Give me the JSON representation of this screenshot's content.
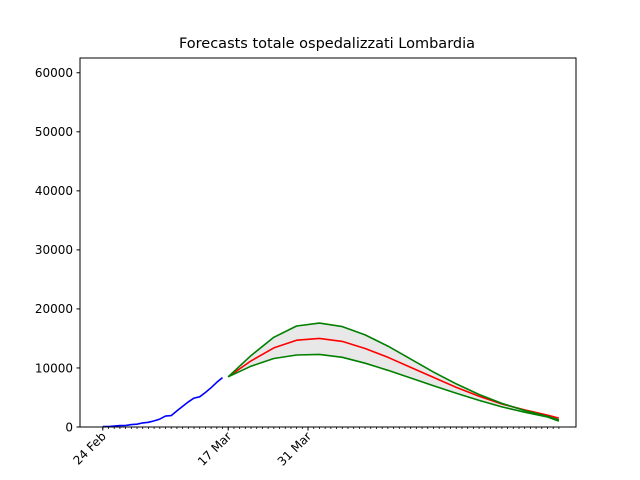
{
  "chart_data": {
    "type": "line",
    "title": "Forecasts totale ospedalizzati Lombardia",
    "xlabel": "",
    "ylabel": "",
    "x_unit": "days since 2020-02-24",
    "x_ticks": [
      {
        "day": 0,
        "label": "24 Feb"
      },
      {
        "day": 22,
        "label": "17 Mar"
      },
      {
        "day": 36,
        "label": "31 Mar"
      }
    ],
    "xlim": [
      -4,
      83
    ],
    "ylim": [
      0,
      62500
    ],
    "yticks": [
      0,
      10000,
      20000,
      30000,
      40000,
      50000,
      60000
    ],
    "grid": false,
    "colors": {
      "observed": "#0000ff",
      "forecast": "#ff0000",
      "bounds": "#008000",
      "band_fill": "#e8e8e8"
    },
    "series": [
      {
        "name": "",
        "kind": "observed",
        "x": [
          0,
          1,
          2,
          3,
          4,
          5,
          6,
          7,
          8,
          9,
          10,
          11,
          12,
          13,
          14,
          15,
          16,
          17,
          18,
          19,
          20,
          21
        ],
        "y": [
          76,
          79,
          172,
          235,
          256,
          406,
          478,
          691,
          798,
          1034,
          1346,
          1853,
          1934,
          2734,
          3488,
          4243,
          4898,
          5114,
          5843,
          6657,
          7568,
          8372
        ]
      },
      {
        "name": "",
        "kind": "forecast",
        "x": [
          22,
          26,
          30,
          34,
          38,
          42,
          46,
          50,
          54,
          58,
          62,
          66,
          70,
          74,
          78,
          80
        ],
        "y": [
          8500,
          11200,
          13400,
          14700,
          15000,
          14500,
          13300,
          11800,
          10100,
          8400,
          6700,
          5200,
          3900,
          2900,
          2000,
          1500
        ]
      },
      {
        "name": "",
        "kind": "upper",
        "x": [
          22,
          26,
          30,
          34,
          38,
          42,
          46,
          50,
          54,
          58,
          62,
          66,
          70,
          74,
          78,
          80
        ],
        "y": [
          8500,
          12100,
          15200,
          17100,
          17600,
          17000,
          15600,
          13700,
          11500,
          9300,
          7300,
          5500,
          4000,
          2800,
          1800,
          1200
        ]
      },
      {
        "name": "",
        "kind": "lower",
        "x": [
          22,
          26,
          30,
          34,
          38,
          42,
          46,
          50,
          54,
          58,
          62,
          66,
          70,
          74,
          78,
          80
        ],
        "y": [
          8500,
          10300,
          11600,
          12200,
          12300,
          11800,
          10800,
          9600,
          8300,
          7000,
          5700,
          4500,
          3400,
          2500,
          1700,
          1000
        ]
      }
    ]
  }
}
